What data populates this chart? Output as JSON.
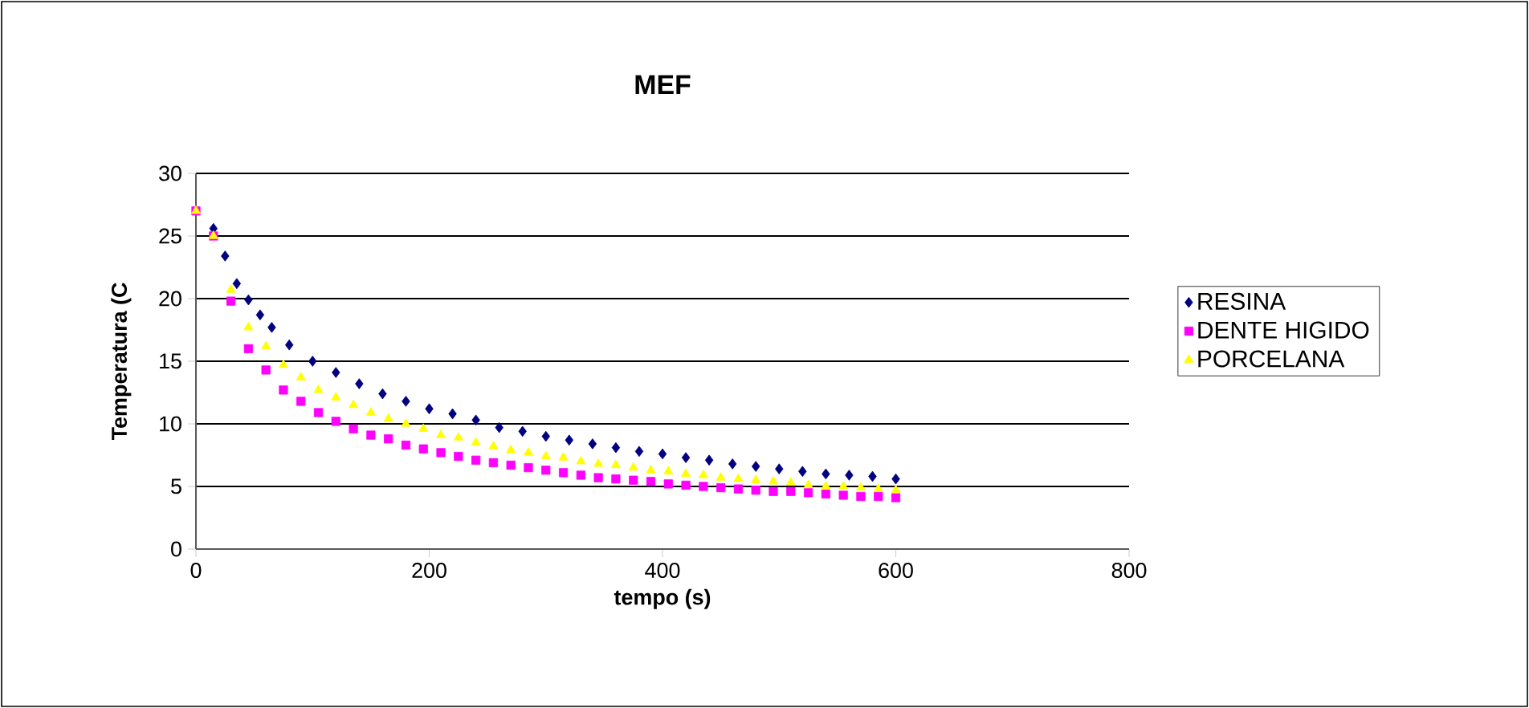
{
  "chart_data": {
    "type": "scatter",
    "title": "MEF",
    "xlabel": "tempo (s)",
    "ylabel": "Temperatura (C",
    "xlim": [
      0,
      800
    ],
    "xticks": [
      0,
      200,
      400,
      600,
      800
    ],
    "ylim": [
      0,
      30
    ],
    "yticks": [
      0,
      5,
      10,
      15,
      20,
      25,
      30
    ],
    "grid": "y",
    "legend": "right",
    "series": [
      {
        "name": "RESINA",
        "color": "#000080",
        "marker": "diamond",
        "x": [
          15,
          25,
          35,
          45,
          55,
          65,
          80,
          100,
          120,
          140,
          160,
          180,
          200,
          220,
          240,
          260,
          280,
          300,
          320,
          340,
          360,
          380,
          400,
          420,
          440,
          460,
          480,
          500,
          520,
          540,
          560,
          580,
          600
        ],
        "values": [
          25.6,
          23.4,
          21.2,
          19.9,
          18.7,
          17.7,
          16.3,
          15.0,
          14.1,
          13.2,
          12.4,
          11.8,
          11.2,
          10.8,
          10.3,
          9.7,
          9.4,
          9.0,
          8.7,
          8.4,
          8.1,
          7.8,
          7.6,
          7.3,
          7.1,
          6.8,
          6.6,
          6.4,
          6.2,
          6.0,
          5.9,
          5.8,
          5.6
        ]
      },
      {
        "name": "DENTE HIGIDO",
        "color": "#ff00ff",
        "marker": "square",
        "x": [
          0,
          15,
          30,
          45,
          60,
          75,
          90,
          105,
          120,
          135,
          150,
          165,
          180,
          195,
          210,
          225,
          240,
          255,
          270,
          285,
          300,
          315,
          330,
          345,
          360,
          375,
          390,
          405,
          420,
          435,
          450,
          465,
          480,
          495,
          510,
          525,
          540,
          555,
          570,
          585,
          600
        ],
        "values": [
          27,
          25.0,
          19.8,
          16.0,
          14.3,
          12.7,
          11.8,
          10.9,
          10.2,
          9.6,
          9.1,
          8.8,
          8.3,
          8.0,
          7.7,
          7.4,
          7.1,
          6.9,
          6.7,
          6.5,
          6.3,
          6.1,
          5.9,
          5.7,
          5.6,
          5.5,
          5.4,
          5.2,
          5.1,
          5.0,
          4.9,
          4.8,
          4.7,
          4.6,
          4.6,
          4.5,
          4.4,
          4.3,
          4.2,
          4.2,
          4.1
        ]
      },
      {
        "name": "PORCELANA",
        "color": "#ffff00",
        "marker": "triangle",
        "x": [
          0,
          15,
          30,
          45,
          60,
          75,
          90,
          105,
          120,
          135,
          150,
          165,
          180,
          195,
          210,
          225,
          240,
          255,
          270,
          285,
          300,
          315,
          330,
          345,
          360,
          375,
          390,
          405,
          420,
          435,
          450,
          465,
          480,
          495,
          510,
          525,
          540,
          555,
          570,
          585,
          600
        ],
        "values": [
          27,
          25.0,
          20.7,
          17.7,
          16.2,
          14.7,
          13.7,
          12.7,
          12.1,
          11.5,
          10.9,
          10.4,
          10.0,
          9.6,
          9.1,
          8.9,
          8.5,
          8.2,
          7.9,
          7.7,
          7.4,
          7.3,
          7.0,
          6.8,
          6.7,
          6.5,
          6.3,
          6.2,
          6.0,
          5.9,
          5.7,
          5.6,
          5.5,
          5.4,
          5.3,
          5.1,
          5.0,
          5.0,
          4.9,
          4.8,
          4.7
        ]
      }
    ]
  }
}
